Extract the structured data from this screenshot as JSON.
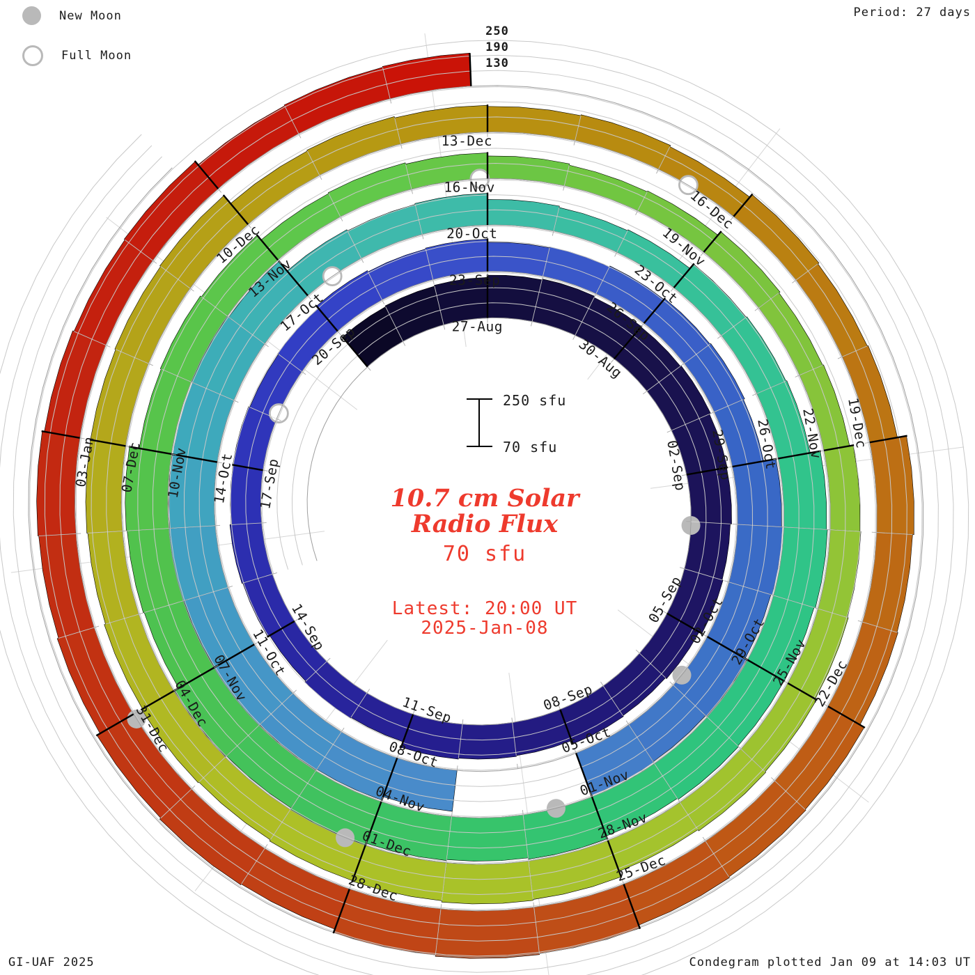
{
  "legend": {
    "new_moon_label": "New Moon",
    "full_moon_label": "Full Moon"
  },
  "period_label": "Period: 27 days",
  "radial_scale": {
    "t250": "250",
    "t190": "190",
    "t130": "130"
  },
  "scale_key": {
    "top_label": "250 sfu",
    "bottom_label": "70 sfu"
  },
  "center_text": {
    "title_line1": "10.7 cm Solar",
    "title_line2": "Radio Flux",
    "unit_line": "70 sfu",
    "latest_line1": "Latest: 20:00 UT",
    "latest_line2": "2025-Jan-08"
  },
  "footer": {
    "left": "GI-UAF 2025",
    "right": "Condegram plotted Jan 09 at 14:03 UT"
  },
  "colors": {
    "accent_red": "#ee3a2d",
    "moon_gray": "#b9b9b9",
    "grid_gray": "#c8c8c8",
    "baseline_gray": "#9e9e9e",
    "label_ink": "#1b1b1b"
  },
  "chart_data": {
    "type": "bar",
    "layout": "polar spiral condegram; time runs clockwise, one full turn = 27 days; daily bars radiate outward from the spiral baseline; grid arcs at 130/190/250 sfu above each baseline",
    "title": "10.7 cm Solar Radio Flux",
    "units": "sfu",
    "flux_axis": {
      "min": 70,
      "max": 250,
      "gridlines": [
        130,
        190,
        250
      ]
    },
    "period_days": 27,
    "start_date": "2024-08-24",
    "end_datetime": "2025-01-08 20:00 UT",
    "end_day": 137.833,
    "date_labels": [
      "27-Aug",
      "30-Aug",
      "02-Sep",
      "05-Sep",
      "08-Sep",
      "11-Sep",
      "14-Sep",
      "17-Sep",
      "20-Sep",
      "23-Sep",
      "26-Sep",
      "29-Sep",
      "02-Oct",
      "05-Oct",
      "08-Oct",
      "11-Oct",
      "14-Oct",
      "17-Oct",
      "20-Oct",
      "23-Oct",
      "26-Oct",
      "29-Oct",
      "01-Nov",
      "04-Nov",
      "07-Nov",
      "10-Nov",
      "13-Nov",
      "16-Nov",
      "19-Nov",
      "22-Nov",
      "25-Nov",
      "28-Nov",
      "01-Dec",
      "04-Dec",
      "07-Dec",
      "10-Dec",
      "13-Dec",
      "16-Dec",
      "19-Dec",
      "22-Dec",
      "25-Dec",
      "28-Dec",
      "31-Dec",
      "03-Jan"
    ],
    "segments": [
      {
        "date": "2024-08-24",
        "flux": 228
      },
      {
        "date": "2024-08-27",
        "flux": 242
      },
      {
        "date": "2024-08-30",
        "flux": 236
      },
      {
        "date": "2024-09-02",
        "flux": 230
      },
      {
        "date": "2024-09-05",
        "flux": 214
      },
      {
        "date": "2024-09-08",
        "flux": 206
      },
      {
        "date": "2024-09-11",
        "flux": 188
      },
      {
        "date": "2024-09-14",
        "flux": 193
      },
      {
        "date": "2024-09-17",
        "flux": 190
      },
      {
        "date": "2024-09-20",
        "flux": 197
      },
      {
        "date": "2024-09-23",
        "flux": 190
      },
      {
        "date": "2024-09-26",
        "flux": 200
      },
      {
        "date": "2024-09-29",
        "flux": 246
      },
      {
        "date": "2024-10-02",
        "flux": 250
      },
      {
        "date": "2024-10-05",
        "flux": 232
      },
      {
        "date": "2024-10-08",
        "flux": 252
      },
      {
        "date": "2024-10-11",
        "flux": 255
      },
      {
        "date": "2024-10-14",
        "flux": 250
      },
      {
        "date": "2024-10-17",
        "flux": 196
      },
      {
        "date": "2024-10-20",
        "flux": 168
      },
      {
        "date": "2024-10-23",
        "flux": 196
      },
      {
        "date": "2024-10-26",
        "flux": 242
      },
      {
        "date": "2024-10-29",
        "flux": 238
      },
      {
        "date": "2024-11-01",
        "flux": 246
      },
      {
        "date": "2024-11-04",
        "flux": 250
      },
      {
        "date": "2024-11-07",
        "flux": 236
      },
      {
        "date": "2024-11-10",
        "flux": 202
      },
      {
        "date": "2024-11-13",
        "flux": 174
      },
      {
        "date": "2024-11-16",
        "flux": 158
      },
      {
        "date": "2024-11-19",
        "flux": 172
      },
      {
        "date": "2024-11-22",
        "flux": 192
      },
      {
        "date": "2024-11-25",
        "flux": 204
      },
      {
        "date": "2024-11-28",
        "flux": 224
      },
      {
        "date": "2024-12-01",
        "flux": 218
      },
      {
        "date": "2024-12-04",
        "flux": 210
      },
      {
        "date": "2024-12-07",
        "flux": 216
      },
      {
        "date": "2024-12-10",
        "flux": 180
      },
      {
        "date": "2024-12-13",
        "flux": 172
      },
      {
        "date": "2024-12-16",
        "flux": 182
      },
      {
        "date": "2024-12-19",
        "flux": 215
      },
      {
        "date": "2024-12-22",
        "flux": 240
      },
      {
        "date": "2024-12-25",
        "flux": 258
      },
      {
        "date": "2024-12-28",
        "flux": 240
      },
      {
        "date": "2024-12-31",
        "flux": 222
      },
      {
        "date": "2025-01-03",
        "flux": 210
      },
      {
        "date": "2025-01-06",
        "flux": 198
      }
    ],
    "gap_days": [
      "2024-10-05",
      "2024-10-06"
    ],
    "moons": {
      "new": [
        {
          "date": "2024-09-03",
          "day": 10.08
        },
        {
          "date": "2024-10-02",
          "day": 39.78
        },
        {
          "date": "2024-11-01",
          "day": 69.53
        },
        {
          "date": "2024-12-01",
          "day": 99.26
        },
        {
          "date": "2024-12-30",
          "day": 128.94
        }
      ],
      "full": [
        {
          "date": "2024-09-18",
          "day": 25.11
        },
        {
          "date": "2024-10-17",
          "day": 54.48
        },
        {
          "date": "2024-11-15",
          "day": 83.9
        },
        {
          "date": "2024-12-15",
          "day": 113.38
        }
      ]
    },
    "color_stops": [
      [
        0,
        "#0a0722"
      ],
      [
        3,
        "#120d3c"
      ],
      [
        6,
        "#171047"
      ],
      [
        9,
        "#1b1356"
      ],
      [
        12,
        "#1e1566"
      ],
      [
        15,
        "#221a7e"
      ],
      [
        18,
        "#261f92"
      ],
      [
        21,
        "#2a28a6"
      ],
      [
        24,
        "#2e33b8"
      ],
      [
        27,
        "#3340c6"
      ],
      [
        30,
        "#3a52c9"
      ],
      [
        33,
        "#3a5ec8"
      ],
      [
        36,
        "#3866c6"
      ],
      [
        39,
        "#3b70c6"
      ],
      [
        43,
        "#4a86ca"
      ],
      [
        46,
        "#4790c9"
      ],
      [
        49,
        "#429cc4"
      ],
      [
        52,
        "#3dabba"
      ],
      [
        55,
        "#3fb8ae"
      ],
      [
        58,
        "#3cbda4"
      ],
      [
        61,
        "#35c296"
      ],
      [
        64,
        "#30c489"
      ],
      [
        67,
        "#2ec480"
      ],
      [
        70,
        "#35c46e"
      ],
      [
        73,
        "#42c25c"
      ],
      [
        76,
        "#4fc24e"
      ],
      [
        79,
        "#58c44a"
      ],
      [
        82,
        "#5fc84b"
      ],
      [
        85,
        "#6ec642"
      ],
      [
        88,
        "#7ec43d"
      ],
      [
        91,
        "#90c437"
      ],
      [
        94,
        "#9fc32f"
      ],
      [
        97,
        "#a8c22a"
      ],
      [
        100,
        "#aebf26"
      ],
      [
        103,
        "#b2b320"
      ],
      [
        106,
        "#b4a51a"
      ],
      [
        109,
        "#b69b14"
      ],
      [
        112,
        "#b88e10"
      ],
      [
        115,
        "#ba7e11"
      ],
      [
        118,
        "#bd6c14"
      ],
      [
        121,
        "#bf5a15"
      ],
      [
        124,
        "#bf4b17"
      ],
      [
        127,
        "#c03e14"
      ],
      [
        130,
        "#c23012"
      ],
      [
        133,
        "#c3220f"
      ],
      [
        136,
        "#c6170a"
      ],
      [
        138,
        "#cb1206"
      ]
    ]
  }
}
